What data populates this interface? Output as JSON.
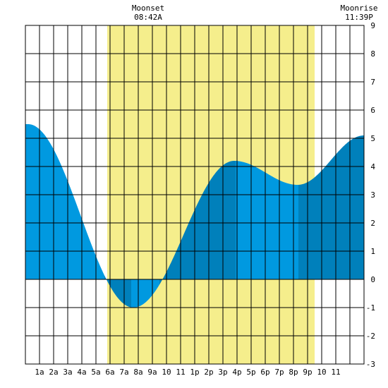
{
  "chart_data": {
    "type": "area",
    "title": "",
    "xlabel": "",
    "ylabel": "",
    "xlim": [
      0,
      24
    ],
    "ylim": [
      -3,
      9
    ],
    "y_ticks": [
      9,
      8,
      7,
      6,
      5,
      4,
      3,
      2,
      1,
      0,
      -1,
      -2,
      -3
    ],
    "x_tick_labels": [
      {
        "hour": 1,
        "label": "1a"
      },
      {
        "hour": 2,
        "label": "2a"
      },
      {
        "hour": 3,
        "label": "3a"
      },
      {
        "hour": 4,
        "label": "4a"
      },
      {
        "hour": 5,
        "label": "5a"
      },
      {
        "hour": 6,
        "label": "6a"
      },
      {
        "hour": 7,
        "label": "7a"
      },
      {
        "hour": 8,
        "label": "8a"
      },
      {
        "hour": 9,
        "label": "9a"
      },
      {
        "hour": 10,
        "label": "10"
      },
      {
        "hour": 11,
        "label": "11"
      },
      {
        "hour": 12,
        "label": "1p"
      },
      {
        "hour": 13,
        "label": "2p"
      },
      {
        "hour": 14,
        "label": "3p"
      },
      {
        "hour": 15,
        "label": "4p"
      },
      {
        "hour": 16,
        "label": "5p"
      },
      {
        "hour": 17,
        "label": "6p"
      },
      {
        "hour": 18,
        "label": "7p"
      },
      {
        "hour": 19,
        "label": "8p"
      },
      {
        "hour": 20,
        "label": "9p"
      },
      {
        "hour": 21,
        "label": "10"
      },
      {
        "hour": 22,
        "label": "11"
      }
    ],
    "grid": true,
    "daylight": {
      "start": 5.8,
      "end": 20.5
    },
    "moon_events": [
      {
        "name": "Moonset",
        "time": "08:42A",
        "hour": 8.7
      },
      {
        "name": "Moonrise",
        "time": "11:39P",
        "hour": 23.65
      }
    ],
    "tide_extremes": [
      {
        "hour": 0.2,
        "height": 5.5
      },
      {
        "hour": 7.65,
        "height": -1.0
      },
      {
        "hour": 14.8,
        "height": 4.2
      },
      {
        "hour": 19.3,
        "height": 3.35
      },
      {
        "hour": 24,
        "height": 5.1
      }
    ],
    "shade_boundaries": [
      5.6,
      7.5,
      9.5,
      14.9,
      19.35
    ],
    "colors": {
      "daylight": "#f5ee8c",
      "tide_light": "#0099e0",
      "tide_dark": "#0080bb",
      "grid": "#000000",
      "background": "#ffffff"
    }
  }
}
